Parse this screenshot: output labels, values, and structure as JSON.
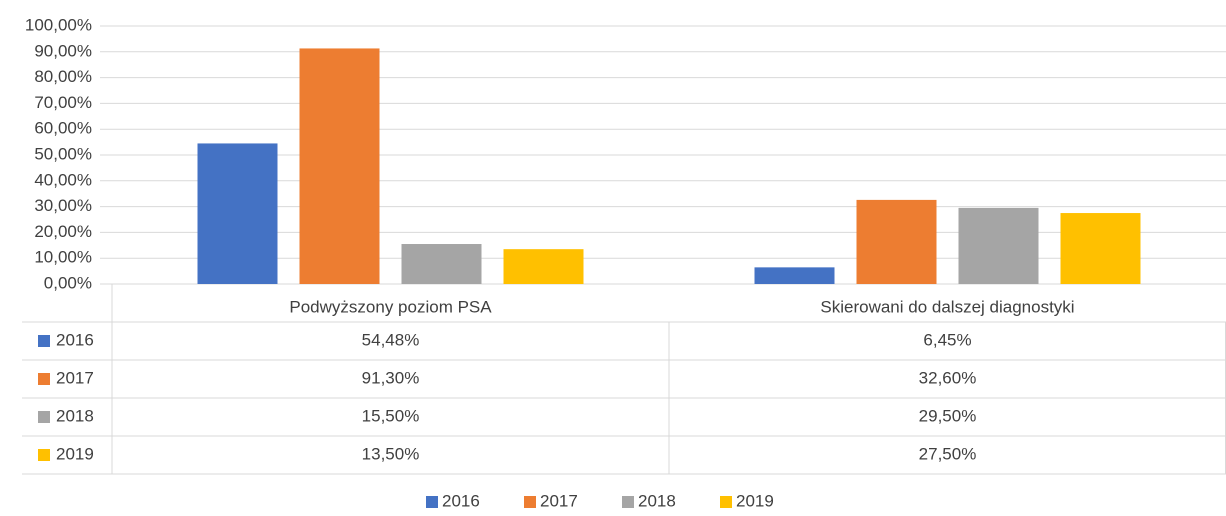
{
  "chart_data": {
    "type": "bar",
    "categories": [
      "Podwyższony poziom PSA",
      "Skierowani do dalszej diagnostyki"
    ],
    "series": [
      {
        "name": "2016",
        "color": "#4472c4",
        "values": [
          54.48,
          6.45
        ],
        "value_labels": [
          "54,48%",
          "6,45%"
        ]
      },
      {
        "name": "2017",
        "color": "#ed7d31",
        "values": [
          91.3,
          32.6
        ],
        "value_labels": [
          "91,30%",
          "32,60%"
        ]
      },
      {
        "name": "2018",
        "color": "#a5a5a5",
        "values": [
          15.5,
          29.5
        ],
        "value_labels": [
          "15,50%",
          "29,50%"
        ]
      },
      {
        "name": "2019",
        "color": "#ffc000",
        "values": [
          13.5,
          27.5
        ],
        "value_labels": [
          "13,50%",
          "27,50%"
        ]
      }
    ],
    "ylim": [
      0,
      100
    ],
    "yticks": [
      {
        "value": 0,
        "label": "0,00%"
      },
      {
        "value": 10,
        "label": "10,00%"
      },
      {
        "value": 20,
        "label": "20,00%"
      },
      {
        "value": 30,
        "label": "30,00%"
      },
      {
        "value": 40,
        "label": "40,00%"
      },
      {
        "value": 50,
        "label": "50,00%"
      },
      {
        "value": 60,
        "label": "60,00%"
      },
      {
        "value": 70,
        "label": "70,00%"
      },
      {
        "value": 80,
        "label": "80,00%"
      },
      {
        "value": 90,
        "label": "90,00%"
      },
      {
        "value": 100,
        "label": "100,00%"
      }
    ],
    "grid": true,
    "legend": "bottom",
    "data_table": true
  }
}
